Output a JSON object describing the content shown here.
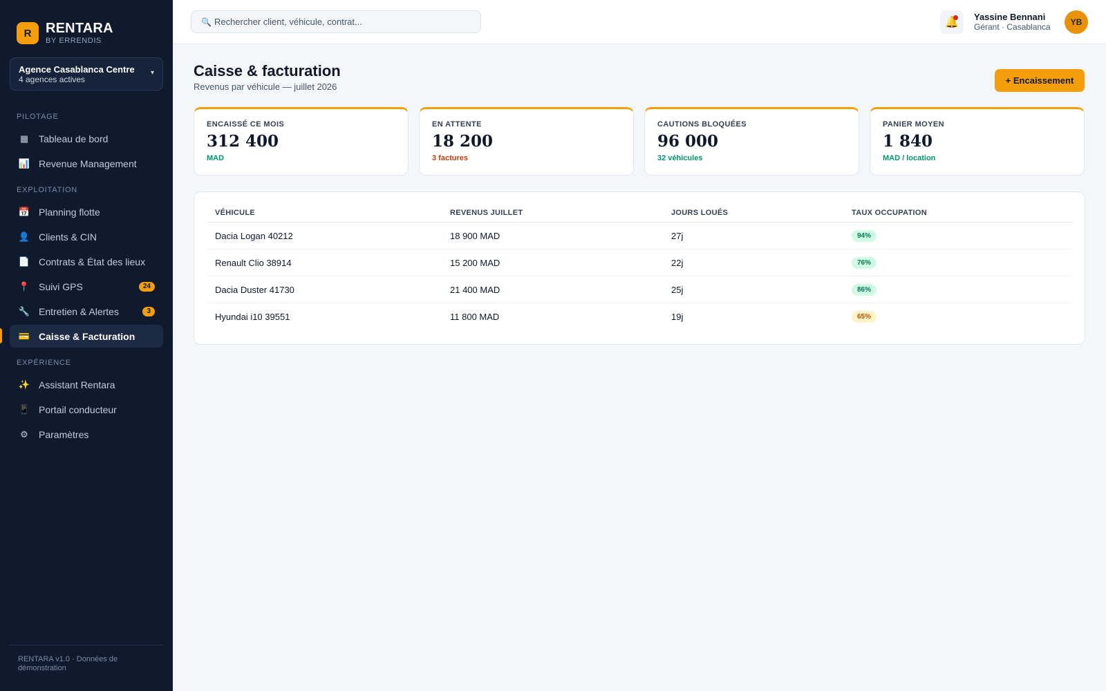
{
  "brand": {
    "logo_letter": "R",
    "name": "RENTARA",
    "tagline": "BY ERRENDIS"
  },
  "agency": {
    "name": "Agence Casablanca Centre",
    "sub": "4 agences actives",
    "caret": "▾"
  },
  "nav": {
    "sections": [
      "PILOTAGE",
      "EXPLOITATION",
      "EXPÉRIENCE"
    ],
    "items": [
      {
        "label": "Tableau de bord",
        "icon": "▦",
        "icon_name": "dashboard-icon"
      },
      {
        "label": "Revenue Management",
        "icon": "📊",
        "icon_name": "chart-icon"
      },
      {
        "label": "Planning flotte",
        "icon": "📅",
        "icon_name": "calendar-icon"
      },
      {
        "label": "Clients & CIN",
        "icon": "👤",
        "icon_name": "user-icon"
      },
      {
        "label": "Contrats & État des lieux",
        "icon": "📄",
        "icon_name": "document-icon"
      },
      {
        "label": "Suivi GPS",
        "icon": "📍",
        "icon_name": "pin-icon",
        "badge": "24"
      },
      {
        "label": "Entretien & Alertes",
        "icon": "🔧",
        "icon_name": "wrench-icon",
        "badge": "3"
      },
      {
        "label": "Caisse & Facturation",
        "icon": "💳",
        "icon_name": "card-icon",
        "active": true
      },
      {
        "label": "Assistant Rentara",
        "icon": "✨",
        "icon_name": "sparkles-icon"
      },
      {
        "label": "Portail conducteur",
        "icon": "📱",
        "icon_name": "phone-icon"
      },
      {
        "label": "Paramètres",
        "icon": "⚙",
        "icon_name": "gear-icon"
      }
    ]
  },
  "footer": {
    "text": "RENTARA v1.0 · Données de démonstration"
  },
  "search": {
    "icon": "🔍",
    "placeholder": "Rechercher client, véhicule, contrat..."
  },
  "notifications": {
    "icon": "🔔"
  },
  "user": {
    "name": "Yassine Bennani",
    "role": "Gérant · Casablanca",
    "initials": "YB"
  },
  "page": {
    "title": "Caisse & facturation",
    "subtitle": "Revenus par véhicule — juillet 2026",
    "primary_action": "+ Encaissement"
  },
  "kpis": [
    {
      "label": "ENCAISSÉ CE MOIS",
      "value": "312 400",
      "sub": "MAD",
      "sub_color": "#059669"
    },
    {
      "label": "EN ATTENTE",
      "value": "18 200",
      "sub": "3 factures",
      "sub_color": "#c2410c"
    },
    {
      "label": "CAUTIONS BLOQUÉES",
      "value": "96 000",
      "sub": "32 véhicules",
      "sub_color": "#059669"
    },
    {
      "label": "PANIER MOYEN",
      "value": "1 840",
      "sub": "MAD / location",
      "sub_color": "#059669"
    }
  ],
  "table": {
    "headers": [
      "VÉHICULE",
      "REVENUS JUILLET",
      "JOURS LOUÉS",
      "TAUX OCCUPATION"
    ],
    "rows": [
      {
        "vehicle": "Dacia Logan 40212",
        "revenue": "18 900 MAD",
        "days": "27j",
        "occupancy": "94%",
        "status": "good"
      },
      {
        "vehicle": "Renault Clio 38914",
        "revenue": "15 200 MAD",
        "days": "22j",
        "occupancy": "76%",
        "status": "good"
      },
      {
        "vehicle": "Dacia Duster 41730",
        "revenue": "21 400 MAD",
        "days": "25j",
        "occupancy": "86%",
        "status": "good"
      },
      {
        "vehicle": "Hyundai i10 39551",
        "revenue": "11 800 MAD",
        "days": "19j",
        "occupancy": "65%",
        "status": "warn"
      }
    ]
  }
}
